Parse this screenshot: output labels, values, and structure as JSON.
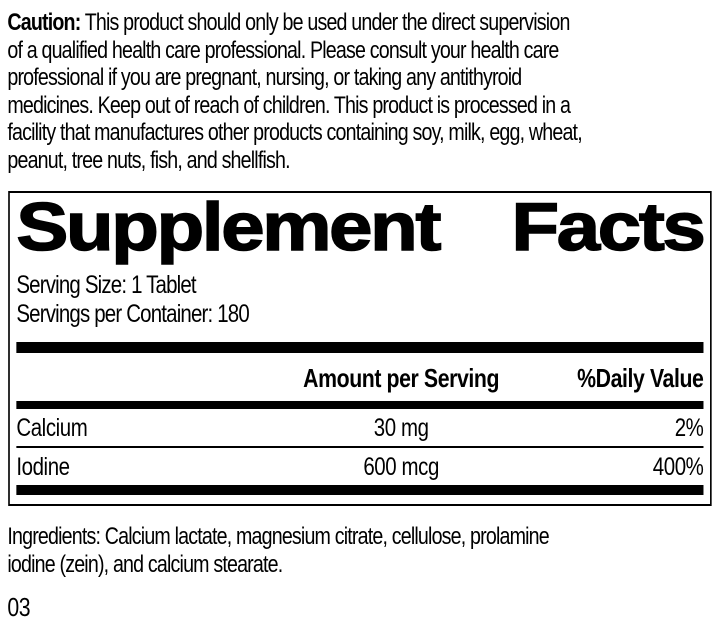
{
  "colors": {
    "ink": "#000000",
    "paper": "#ffffff"
  },
  "caution": {
    "bold_label": "Caution:",
    "lines": [
      " This product should only be used under the direct supervision",
      "of a qualified health care professional. Please consult your health care",
      "professional if you are pregnant, nursing, or taking any antithyroid",
      "medicines. Keep out of reach of children. This product is processed in a",
      "facility that manufactures other products containing soy, milk, egg, wheat,",
      "peanut, tree nuts, fish, and shellfish."
    ]
  },
  "panel": {
    "title": {
      "words": [
        "Supplement",
        "Facts"
      ]
    },
    "serving_size": "Serving Size: 1 Tablet",
    "servings_per_container": "Servings per Container: 180",
    "header": {
      "amount": "Amount per Serving",
      "daily_value": "%Daily Value"
    },
    "rows": [
      {
        "name": "Calcium",
        "amount": "30 mg",
        "dv": "2%"
      },
      {
        "name": "Iodine",
        "amount": "600 mcg",
        "dv": "400%"
      }
    ]
  },
  "ingredients": {
    "lines": [
      "Ingredients: Calcium lactate, magnesium citrate, cellulose, prolamine",
      "iodine (zein), and calcium stearate."
    ]
  },
  "page_code": "03"
}
